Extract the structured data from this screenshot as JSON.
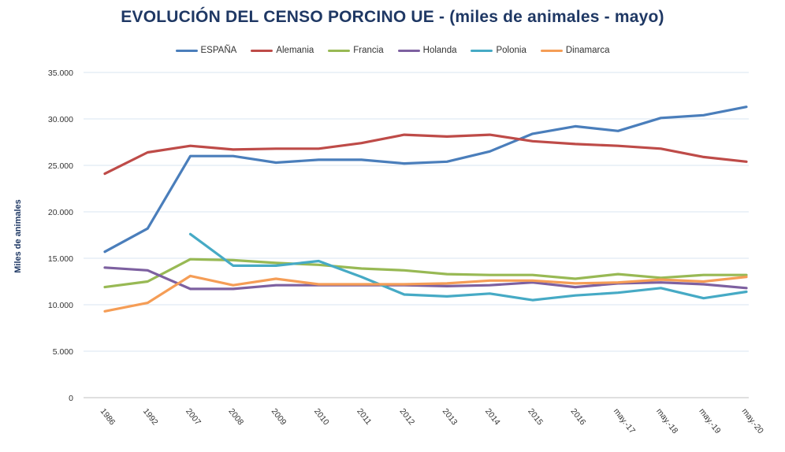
{
  "chart_data": {
    "type": "line",
    "title": "EVOLUCIÓN DEL CENSO PORCINO UE - (miles de animales - mayo)",
    "ylabel": "Miles de animales",
    "xlabel": "",
    "ylim": [
      0,
      35000
    ],
    "yticks": [
      0,
      5000,
      10000,
      15000,
      20000,
      25000,
      30000,
      35000
    ],
    "ytick_labels": [
      "0",
      "5.000",
      "10.000",
      "15.000",
      "20.000",
      "25.000",
      "30.000",
      "35.000"
    ],
    "grid": true,
    "legend_position": "top-center",
    "categories": [
      "1986",
      "1992",
      "2007",
      "2008",
      "2009",
      "2010",
      "2011",
      "2012",
      "2013",
      "2014",
      "2015",
      "2016",
      "may.-17",
      "may.-18",
      "may.-19",
      "may.-20"
    ],
    "series": [
      {
        "name": "ESPAÑA",
        "color": "#4A7EBB",
        "values": [
          15700,
          18200,
          26000,
          26000,
          25300,
          25600,
          25600,
          25200,
          25400,
          26500,
          28400,
          29200,
          28700,
          30100,
          30400,
          31300
        ]
      },
      {
        "name": "Alemania",
        "color": "#BE4B48",
        "values": [
          24100,
          26400,
          27100,
          26700,
          26800,
          26800,
          27400,
          28300,
          28100,
          28300,
          27600,
          27300,
          27100,
          26800,
          25900,
          25400
        ]
      },
      {
        "name": "Francia",
        "color": "#98B954",
        "values": [
          11900,
          12500,
          14900,
          14800,
          14500,
          14300,
          13900,
          13700,
          13300,
          13200,
          13200,
          12800,
          13300,
          12900,
          13200,
          13200
        ]
      },
      {
        "name": "Holanda",
        "color": "#7D60A0",
        "values": [
          14000,
          13700,
          11700,
          11700,
          12100,
          12100,
          12100,
          12100,
          12000,
          12100,
          12400,
          11900,
          12300,
          12400,
          12200,
          11800
        ]
      },
      {
        "name": "Polonia",
        "color": "#46AAC5",
        "values": [
          null,
          null,
          17600,
          14200,
          14200,
          14700,
          13000,
          11100,
          10900,
          11200,
          10500,
          11000,
          11300,
          11800,
          10700,
          11400
        ]
      },
      {
        "name": "Dinamarca",
        "color": "#F59D56",
        "values": [
          9300,
          10200,
          13100,
          12100,
          12800,
          12200,
          12200,
          12200,
          12300,
          12600,
          12600,
          12300,
          12400,
          12700,
          12500,
          13000
        ]
      }
    ]
  }
}
